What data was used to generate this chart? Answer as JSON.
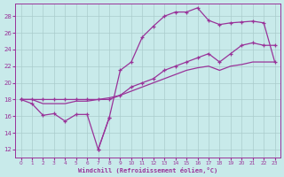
{
  "bg": "#c8eaea",
  "grid_color": "#aacccc",
  "lc": "#993399",
  "xlabel": "Windchill (Refroidissement éolien,°C)",
  "xlim": [
    -0.5,
    23.5
  ],
  "ylim": [
    11.0,
    29.5
  ],
  "yticks": [
    12,
    14,
    16,
    18,
    20,
    22,
    24,
    26,
    28
  ],
  "xticks": [
    0,
    1,
    2,
    3,
    4,
    5,
    6,
    7,
    8,
    9,
    10,
    11,
    12,
    13,
    14,
    15,
    16,
    17,
    18,
    19,
    20,
    21,
    22,
    23
  ],
  "curves": [
    {
      "x": [
        0,
        1,
        2,
        3,
        4,
        5,
        6,
        7,
        8
      ],
      "y": [
        18.0,
        17.5,
        16.1,
        16.3,
        15.4,
        16.2,
        16.2,
        12.0,
        15.8
      ]
    },
    {
      "x": [
        7,
        8,
        9,
        10,
        11,
        12,
        13,
        14,
        15,
        16,
        17,
        18,
        19,
        20,
        21,
        22,
        23
      ],
      "y": [
        12.0,
        15.8,
        21.5,
        22.5,
        25.5,
        26.8,
        28.0,
        28.5,
        28.5,
        29.0,
        27.5,
        27.0,
        27.2,
        27.3,
        27.4,
        27.2,
        22.5
      ]
    },
    {
      "x": [
        0,
        1,
        2,
        3,
        4,
        5,
        6,
        7,
        8,
        9,
        10,
        11,
        12,
        13,
        14,
        15,
        16,
        17,
        18,
        19,
        20,
        21,
        22,
        23
      ],
      "y": [
        18.0,
        18.0,
        18.0,
        18.0,
        18.0,
        18.0,
        18.0,
        18.0,
        18.0,
        18.5,
        19.5,
        20.0,
        20.5,
        21.5,
        22.0,
        22.5,
        23.0,
        23.5,
        22.5,
        23.5,
        24.5,
        24.8,
        24.5,
        24.5
      ]
    },
    {
      "x": [
        0,
        1,
        2,
        3,
        4,
        5,
        6,
        7,
        8,
        9,
        10,
        11,
        12,
        13,
        14,
        15,
        16,
        17,
        18,
        19,
        20,
        21,
        22,
        23
      ],
      "y": [
        18.0,
        18.0,
        17.5,
        17.5,
        17.5,
        17.8,
        17.8,
        18.0,
        18.2,
        18.5,
        19.0,
        19.5,
        20.0,
        20.5,
        21.0,
        21.5,
        21.8,
        22.0,
        21.5,
        22.0,
        22.2,
        22.5,
        22.5,
        22.5
      ]
    }
  ]
}
